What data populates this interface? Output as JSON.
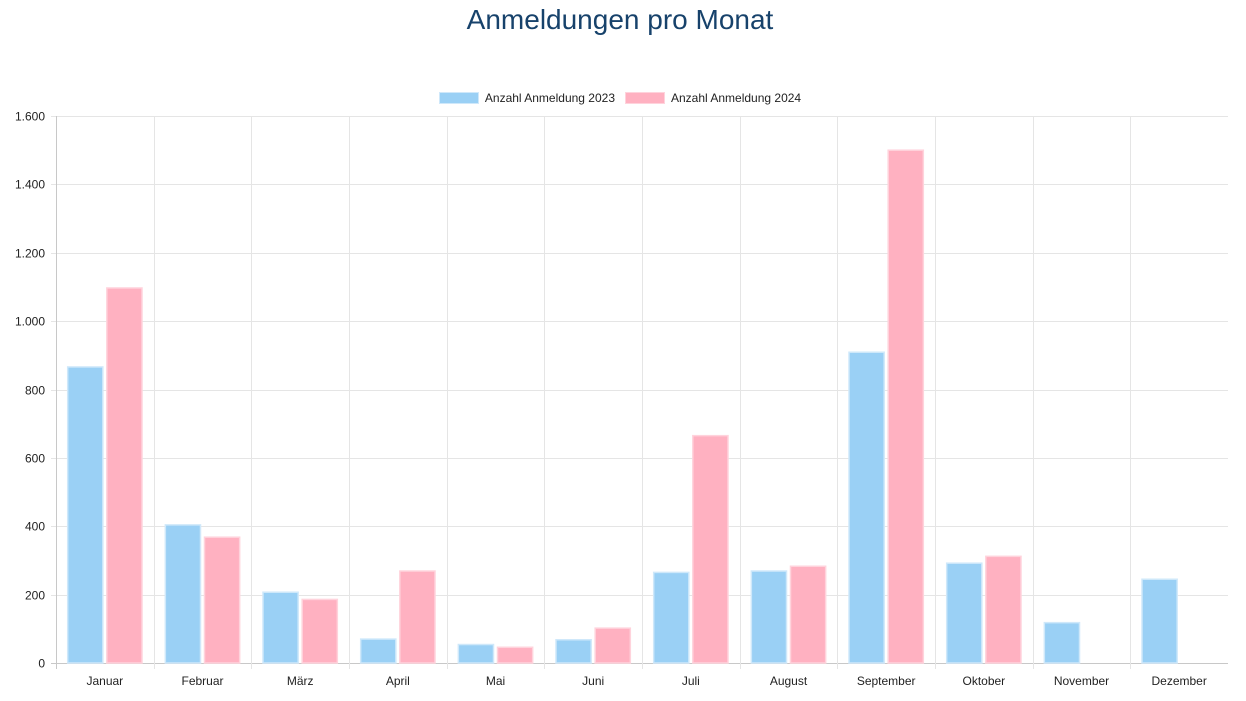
{
  "chart_data": {
    "type": "bar",
    "title": "Anmeldungen pro Monat",
    "xlabel": "",
    "ylabel": "",
    "categories": [
      "Januar",
      "Februar",
      "März",
      "April",
      "Mai",
      "Juni",
      "Juli",
      "August",
      "September",
      "Oktober",
      "November",
      "Dezember"
    ],
    "series": [
      {
        "name": "Anzahl Anmeldung 2023",
        "color": "#9ad0f5",
        "border": "#cfe8fa",
        "values": [
          866,
          404,
          207,
          70,
          54,
          68,
          265,
          269,
          909,
          292,
          118,
          245
        ]
      },
      {
        "name": "Anzahl Anmeldung 2024",
        "color": "#ffb1c1",
        "border": "#ffd3dc",
        "values": [
          1097,
          368,
          186,
          269,
          46,
          102,
          665,
          283,
          1500,
          312,
          null,
          null
        ]
      }
    ],
    "ylim": [
      0,
      1600
    ],
    "yticks": [
      0,
      200,
      400,
      600,
      800,
      1000,
      1200,
      1400,
      1600
    ],
    "ytick_labels": [
      "0",
      "200",
      "400",
      "600",
      "800",
      "1.000",
      "1.200",
      "1.400",
      "1.600"
    ],
    "grid": true,
    "legend_position": "top-center"
  }
}
